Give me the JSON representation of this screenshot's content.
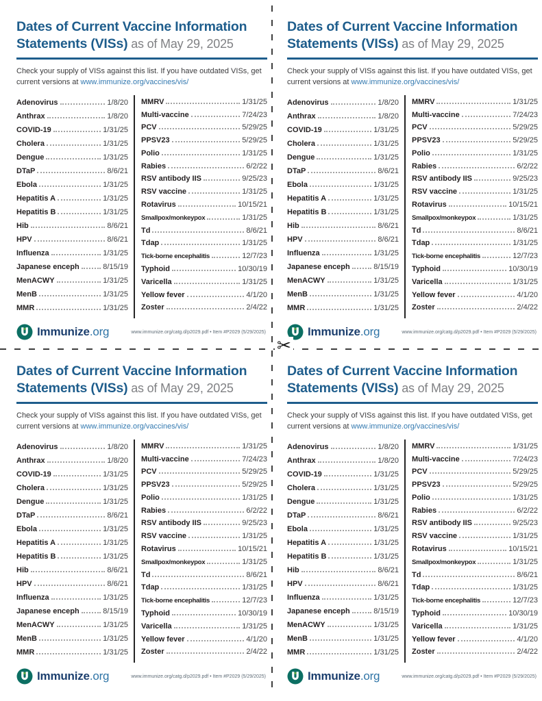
{
  "page": {
    "scissors_icon": "✂"
  },
  "card": {
    "title": "Dates of Current Vaccine Information Statements (VISs)",
    "title_suffix": " as of May 29, 2025",
    "intro_text": "Check your supply of VISs against this list. If you have outdated VISs, get current versions at ",
    "intro_link": "www.immunize.org/vaccines/vis/",
    "columns": {
      "left": [
        {
          "name": "Adenovirus",
          "date": "1/8/20"
        },
        {
          "name": "Anthrax",
          "date": "1/8/20"
        },
        {
          "name": "COVID-19",
          "date": "1/31/25"
        },
        {
          "name": "Cholera",
          "date": "1/31/25"
        },
        {
          "name": "Dengue",
          "date": "1/31/25"
        },
        {
          "name": "DTaP",
          "date": "8/6/21"
        },
        {
          "name": "Ebola",
          "date": "1/31/25"
        },
        {
          "name": "Hepatitis A",
          "date": "1/31/25"
        },
        {
          "name": "Hepatitis B",
          "date": "1/31/25"
        },
        {
          "name": "Hib",
          "date": "8/6/21"
        },
        {
          "name": "HPV",
          "date": "8/6/21"
        },
        {
          "name": "Influenza",
          "date": "1/31/25"
        },
        {
          "name": "Japanese enceph",
          "date": "8/15/19"
        },
        {
          "name": "MenACWY",
          "date": "1/31/25"
        },
        {
          "name": "MenB",
          "date": "1/31/25"
        },
        {
          "name": "MMR",
          "date": "1/31/25"
        }
      ],
      "right": [
        {
          "name": "MMRV",
          "date": "1/31/25"
        },
        {
          "name": "Multi-vaccine",
          "date": "7/24/23"
        },
        {
          "name": "PCV",
          "date": "5/29/25"
        },
        {
          "name": "PPSV23",
          "date": "5/29/25"
        },
        {
          "name": "Polio",
          "date": "1/31/25"
        },
        {
          "name": "Rabies",
          "date": "6/2/22"
        },
        {
          "name": "RSV antibody IIS",
          "date": "9/25/23"
        },
        {
          "name": "RSV vaccine",
          "date": "1/31/25"
        },
        {
          "name": "Rotavirus",
          "date": "10/15/21"
        },
        {
          "name": "Smallpox/monkeypox",
          "date": "1/31/25"
        },
        {
          "name": "Td",
          "date": "8/6/21"
        },
        {
          "name": "Tdap",
          "date": "1/31/25"
        },
        {
          "name": "Tick-borne encephalitis",
          "date": "12/7/23"
        },
        {
          "name": "Typhoid",
          "date": "10/30/19"
        },
        {
          "name": "Varicella",
          "date": "1/31/25"
        },
        {
          "name": "Yellow fever",
          "date": "4/1/20"
        },
        {
          "name": "Zoster",
          "date": "2/4/22"
        }
      ]
    },
    "footer": {
      "brand_name": "Immunize",
      "brand_suffix": ".org",
      "fine_print": "www.immunize.org/catg.d/p2029.pdf • Item #P2029 (5/29/2025)"
    },
    "colors": {
      "title_blue": "#1e5d8c",
      "link_blue": "#3379b0",
      "logo_teal": "#0c6f63",
      "logo_green": "#5aa53c"
    }
  }
}
